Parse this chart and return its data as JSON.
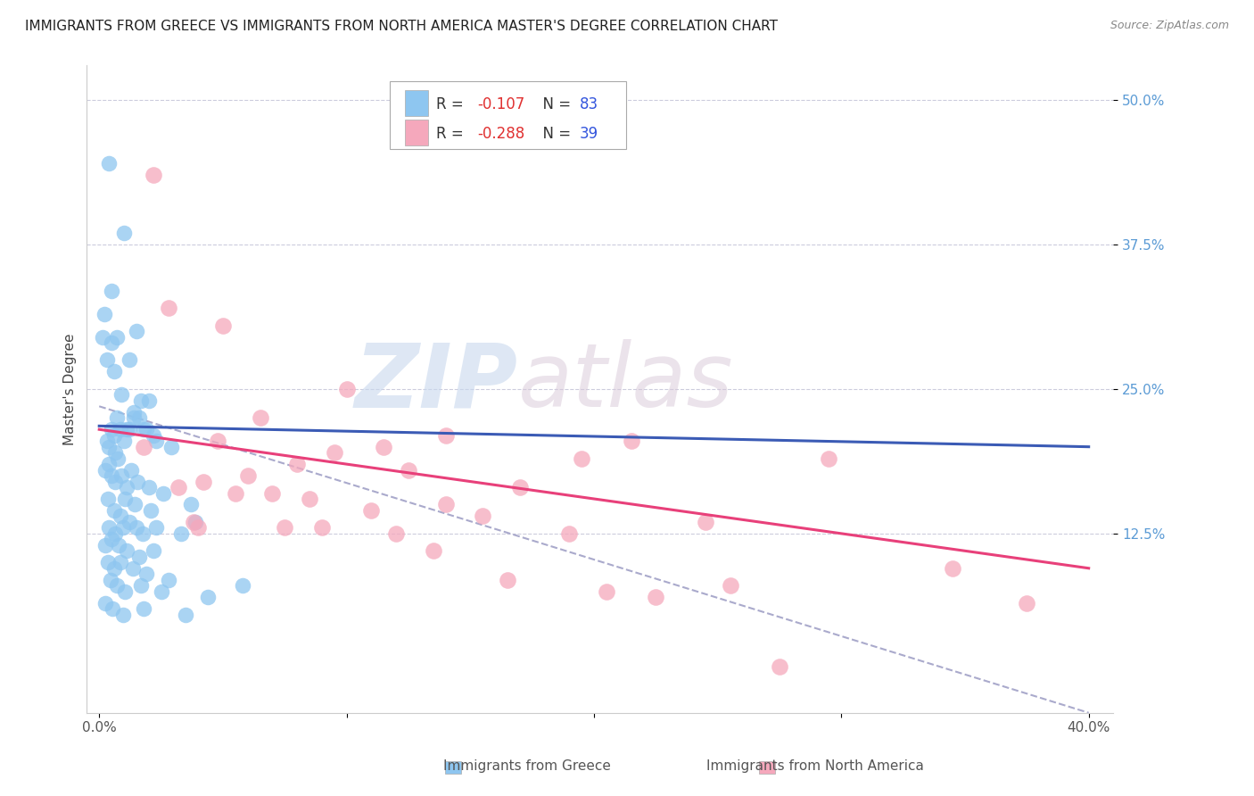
{
  "title": "IMMIGRANTS FROM GREECE VS IMMIGRANTS FROM NORTH AMERICA MASTER'S DEGREE CORRELATION CHART",
  "source": "Source: ZipAtlas.com",
  "ylabel": "Master's Degree",
  "x_tick_labels": [
    "0.0%",
    "",
    "",
    "",
    "40.0%"
  ],
  "x_tick_values": [
    0.0,
    10.0,
    20.0,
    30.0,
    40.0
  ],
  "y_tick_labels_right": [
    "12.5%",
    "25.0%",
    "37.5%",
    "50.0%"
  ],
  "y_tick_values": [
    12.5,
    25.0,
    37.5,
    50.0
  ],
  "xlim": [
    -0.5,
    41.0
  ],
  "ylim": [
    -3.0,
    53.0
  ],
  "series1_color": "#8EC6F0",
  "series2_color": "#F5A8BC",
  "trend1_color": "#3B5BB5",
  "trend2_color": "#E8407A",
  "dashed_color": "#AAAACC",
  "label1": "Immigrants from Greece",
  "label2": "Immigrants from North America",
  "watermark_zip": "ZIP",
  "watermark_atlas": "atlas",
  "background_color": "#FFFFFF",
  "title_fontsize": 11,
  "source_fontsize": 9,
  "axis_label_fontsize": 11,
  "tick_fontsize": 11,
  "scatter1_x": [
    0.4,
    1.0,
    1.5,
    0.2,
    0.5,
    0.3,
    0.5,
    0.6,
    0.7,
    1.2,
    1.7,
    2.0,
    0.15,
    0.7,
    0.9,
    1.1,
    1.4,
    1.6,
    1.9,
    2.3,
    0.3,
    0.4,
    0.5,
    0.6,
    0.65,
    0.75,
    0.85,
    1.0,
    1.2,
    1.4,
    1.8,
    2.2,
    2.9,
    0.25,
    0.4,
    0.5,
    0.65,
    0.9,
    1.1,
    1.3,
    1.55,
    2.0,
    2.6,
    3.7,
    5.8,
    0.35,
    0.6,
    0.85,
    1.05,
    1.45,
    2.1,
    3.9,
    0.4,
    0.65,
    0.95,
    1.2,
    1.5,
    1.75,
    2.3,
    3.3,
    0.25,
    0.5,
    0.8,
    1.1,
    1.6,
    2.2,
    0.35,
    0.6,
    0.85,
    1.35,
    1.9,
    2.8,
    0.45,
    0.7,
    1.05,
    1.7,
    2.5,
    4.4,
    0.25,
    0.55,
    0.95,
    1.8,
    3.5
  ],
  "scatter1_y": [
    44.5,
    38.5,
    30.0,
    31.5,
    33.5,
    27.5,
    29.0,
    26.5,
    29.5,
    27.5,
    24.0,
    24.0,
    29.5,
    22.5,
    24.5,
    21.5,
    23.0,
    22.5,
    21.5,
    20.5,
    20.5,
    20.0,
    21.5,
    21.0,
    19.5,
    19.0,
    21.5,
    20.5,
    21.5,
    22.5,
    21.5,
    21.0,
    20.0,
    18.0,
    18.5,
    17.5,
    17.0,
    17.5,
    16.5,
    18.0,
    17.0,
    16.5,
    16.0,
    15.0,
    8.0,
    15.5,
    14.5,
    14.0,
    15.5,
    15.0,
    14.5,
    13.5,
    13.0,
    12.5,
    13.0,
    13.5,
    13.0,
    12.5,
    13.0,
    12.5,
    11.5,
    12.0,
    11.5,
    11.0,
    10.5,
    11.0,
    10.0,
    9.5,
    10.0,
    9.5,
    9.0,
    8.5,
    8.5,
    8.0,
    7.5,
    8.0,
    7.5,
    7.0,
    6.5,
    6.0,
    5.5,
    6.0,
    5.5
  ],
  "scatter2_x": [
    2.2,
    2.8,
    5.0,
    10.0,
    14.0,
    6.5,
    11.5,
    4.8,
    8.0,
    9.5,
    19.5,
    4.2,
    12.5,
    17.0,
    7.0,
    21.5,
    8.5,
    14.0,
    6.0,
    3.2,
    11.0,
    15.5,
    24.5,
    3.8,
    7.5,
    29.5,
    5.5,
    19.0,
    12.0,
    34.5,
    16.5,
    22.5,
    1.8,
    9.0,
    25.5,
    37.5,
    4.0,
    13.5,
    20.5,
    27.5
  ],
  "scatter2_y": [
    43.5,
    32.0,
    30.5,
    25.0,
    21.0,
    22.5,
    20.0,
    20.5,
    18.5,
    19.5,
    19.0,
    17.0,
    18.0,
    16.5,
    16.0,
    20.5,
    15.5,
    15.0,
    17.5,
    16.5,
    14.5,
    14.0,
    13.5,
    13.5,
    13.0,
    19.0,
    16.0,
    12.5,
    12.5,
    9.5,
    8.5,
    7.0,
    20.0,
    13.0,
    8.0,
    6.5,
    13.0,
    11.0,
    7.5,
    1.0
  ],
  "trend1_x0": 0.0,
  "trend1_x1": 40.0,
  "trend1_y0": 21.8,
  "trend1_y1": 20.0,
  "trend2_x0": 0.0,
  "trend2_x1": 40.0,
  "trend2_y0": 21.5,
  "trend2_y1": 9.5,
  "dashed_x0": 0.0,
  "dashed_x1": 40.0,
  "dashed_y0": 23.5,
  "dashed_y1": -3.0
}
